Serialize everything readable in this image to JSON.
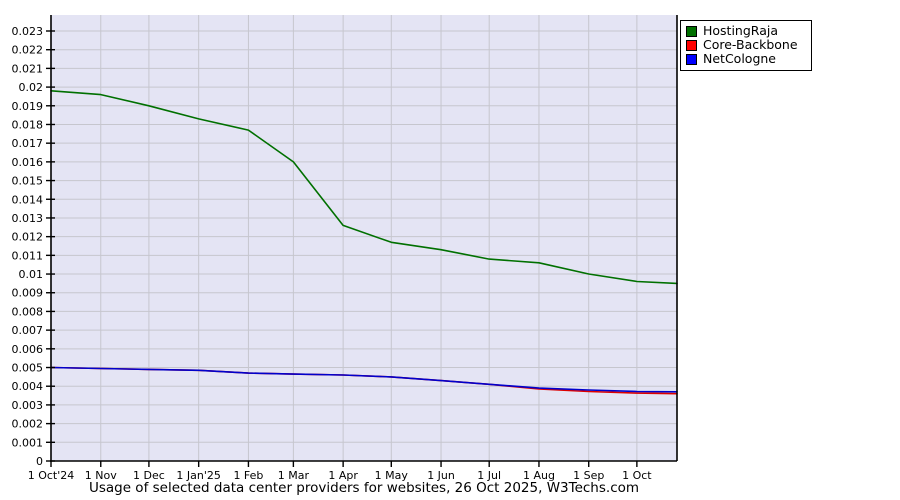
{
  "title": "Usage of selected data center providers for websites, 26 Oct 2025, W3Techs.com",
  "legend": {
    "items": [
      {
        "label": "HostingRaja",
        "color": "#007000"
      },
      {
        "label": "Core-Backbone",
        "color": "#ff0000"
      },
      {
        "label": "NetCologne",
        "color": "#0000ff"
      }
    ]
  },
  "chart_data": {
    "type": "line",
    "title": "Usage of selected data center providers for websites, 26 Oct 2025, W3Techs.com",
    "x_tick_labels": [
      "1 Oct'24",
      "1 Nov",
      "1 Dec",
      "1 Jan'25",
      "1 Feb",
      "1 Mar",
      "1 Apr",
      "1 May",
      "1 Jun",
      "1 Jul",
      "1 Aug",
      "1 Sep",
      "1 Oct"
    ],
    "x_tick_days": [
      0,
      31,
      61,
      92,
      123,
      151,
      182,
      212,
      243,
      273,
      304,
      335,
      365
    ],
    "x_total_days": 390,
    "x_end_label": "26 Oct 2025",
    "ylim": [
      0,
      0.023
    ],
    "y_tick_step": 0.001,
    "grid": true,
    "legend_position": "top-right",
    "plot_background": "#e4e4f4",
    "gridline_color": "#c6c6ce",
    "series": [
      {
        "name": "Core-Backbone",
        "line_color": "#dd0000",
        "x_days": [
          0,
          31,
          61,
          92,
          123,
          151,
          182,
          212,
          243,
          273,
          304,
          335,
          365,
          390
        ],
        "values": [
          0.005,
          0.00495,
          0.0049,
          0.00485,
          0.0047,
          0.00465,
          0.0046,
          0.0045,
          0.0043,
          0.0041,
          0.00385,
          0.00372,
          0.00363,
          0.0036
        ]
      },
      {
        "name": "NetCologne",
        "line_color": "#0000cc",
        "x_days": [
          0,
          31,
          61,
          92,
          123,
          151,
          182,
          212,
          243,
          273,
          304,
          335,
          365,
          390
        ],
        "values": [
          0.005,
          0.00495,
          0.0049,
          0.00485,
          0.0047,
          0.00465,
          0.0046,
          0.0045,
          0.0043,
          0.0041,
          0.0039,
          0.0038,
          0.00372,
          0.0037
        ]
      },
      {
        "name": "HostingRaja",
        "line_color": "#007000",
        "x_days": [
          0,
          31,
          61,
          92,
          123,
          151,
          182,
          212,
          243,
          273,
          304,
          335,
          365,
          390
        ],
        "values": [
          0.0198,
          0.0196,
          0.019,
          0.0183,
          0.0177,
          0.016,
          0.0126,
          0.0117,
          0.0113,
          0.0108,
          0.0106,
          0.01,
          0.0096,
          0.0095
        ]
      }
    ]
  }
}
